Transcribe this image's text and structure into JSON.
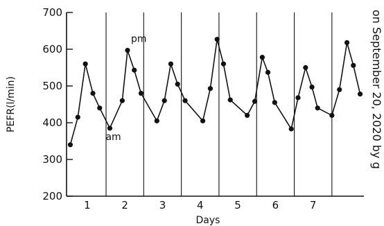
{
  "chart_data": {
    "type": "line",
    "ylabel": "PEFR(l/min)",
    "xlabel": "Days",
    "ylim": [
      200,
      700
    ],
    "yticks": [
      200,
      300,
      400,
      500,
      600,
      700
    ],
    "day_labels": [
      "1",
      "2",
      "3",
      "4",
      "5",
      "6",
      "7"
    ],
    "grid": "vertical day dividers",
    "annotations": [
      {
        "text": "am",
        "point_index": 5
      },
      {
        "text": "pm",
        "point_index": 7
      }
    ],
    "side_text": "on September 20, 2020 by g",
    "series": [
      {
        "points": [
          {
            "x": 0.1,
            "y": 340
          },
          {
            "x": 0.3,
            "y": 415
          },
          {
            "x": 0.5,
            "y": 560
          },
          {
            "x": 0.7,
            "y": 480
          },
          {
            "x": 0.88,
            "y": 440
          },
          {
            "x": 1.15,
            "y": 385
          },
          {
            "x": 1.48,
            "y": 460
          },
          {
            "x": 1.62,
            "y": 597
          },
          {
            "x": 1.8,
            "y": 543
          },
          {
            "x": 1.98,
            "y": 480
          },
          {
            "x": 2.4,
            "y": 405
          },
          {
            "x": 2.6,
            "y": 460
          },
          {
            "x": 2.77,
            "y": 560
          },
          {
            "x": 2.95,
            "y": 505
          },
          {
            "x": 3.15,
            "y": 460
          },
          {
            "x": 3.62,
            "y": 405
          },
          {
            "x": 3.82,
            "y": 493
          },
          {
            "x": 4.0,
            "y": 627
          },
          {
            "x": 4.17,
            "y": 560
          },
          {
            "x": 4.35,
            "y": 462
          },
          {
            "x": 4.8,
            "y": 420
          },
          {
            "x": 5.0,
            "y": 458
          },
          {
            "x": 5.2,
            "y": 578
          },
          {
            "x": 5.35,
            "y": 537
          },
          {
            "x": 5.53,
            "y": 455
          },
          {
            "x": 5.97,
            "y": 383
          },
          {
            "x": 6.15,
            "y": 468
          },
          {
            "x": 6.35,
            "y": 550
          },
          {
            "x": 6.52,
            "y": 497
          },
          {
            "x": 6.67,
            "y": 440
          },
          {
            "x": 7.05,
            "y": 420
          },
          {
            "x": 7.25,
            "y": 490
          },
          {
            "x": 7.45,
            "y": 618
          },
          {
            "x": 7.62,
            "y": 556
          },
          {
            "x": 7.8,
            "y": 478
          }
        ]
      }
    ]
  }
}
